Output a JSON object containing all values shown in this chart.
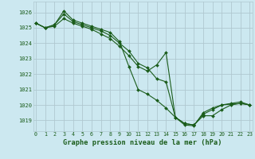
{
  "bg_color": "#cce8f0",
  "grid_color": "#b0c8d0",
  "line_color": "#1a5c1a",
  "marker_color": "#1a5c1a",
  "title": "Graphe pression niveau de la mer (hPa)",
  "title_color": "#1a5c1a",
  "ylim": [
    1018.3,
    1026.7
  ],
  "xlim": [
    -0.3,
    23.3
  ],
  "yticks": [
    1019,
    1020,
    1021,
    1022,
    1023,
    1024,
    1025,
    1026
  ],
  "xticks": [
    0,
    1,
    2,
    3,
    4,
    5,
    6,
    7,
    8,
    9,
    10,
    11,
    12,
    13,
    14,
    15,
    16,
    17,
    18,
    19,
    20,
    21,
    22,
    23
  ],
  "series": [
    [
      1025.3,
      1025.0,
      1025.2,
      1026.1,
      1025.5,
      1025.3,
      1025.1,
      1024.9,
      1024.7,
      1024.1,
      1022.5,
      1021.0,
      1020.7,
      1020.3,
      1019.8,
      1019.2,
      1018.8,
      1018.7,
      1019.3,
      1019.3,
      1019.7,
      1020.0,
      1020.1,
      1020.0
    ],
    [
      1025.3,
      1025.0,
      1025.1,
      1025.6,
      1025.3,
      1025.1,
      1024.9,
      1024.6,
      1024.3,
      1023.8,
      1023.2,
      1022.5,
      1022.2,
      1022.6,
      1023.4,
      1019.2,
      1018.8,
      1018.7,
      1019.4,
      1019.7,
      1020.0,
      1020.1,
      1020.2,
      1020.0
    ],
    [
      1025.3,
      1025.0,
      1025.2,
      1025.9,
      1025.4,
      1025.2,
      1025.0,
      1024.8,
      1024.5,
      1024.0,
      1023.5,
      1022.7,
      1022.4,
      1021.7,
      1021.5,
      1019.2,
      1018.7,
      1018.65,
      1019.5,
      1019.8,
      1020.0,
      1020.05,
      1020.1,
      1020.0
    ]
  ]
}
